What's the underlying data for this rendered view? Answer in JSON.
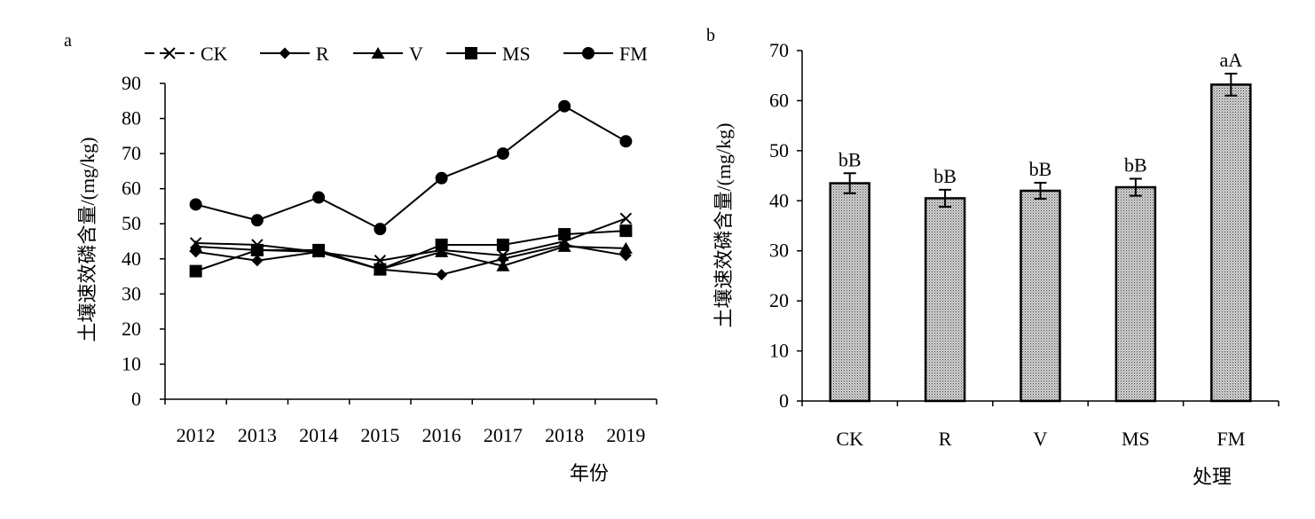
{
  "chart_data": [
    {
      "panel": "a",
      "type": "line",
      "xlabel": "年份",
      "ylabel": "土壤速效磷含量/(mg/kg)",
      "categories": [
        "2012",
        "2013",
        "2014",
        "2015",
        "2016",
        "2017",
        "2018",
        "2019"
      ],
      "ylim": [
        0,
        90
      ],
      "yticks": [
        "0",
        "10",
        "20",
        "30",
        "40",
        "50",
        "60",
        "70",
        "80",
        "90"
      ],
      "grid": false,
      "legend_position": "top",
      "series": [
        {
          "name": "CK",
          "marker": "x",
          "values": [
            44.5,
            44.0,
            42.0,
            39.5,
            42.5,
            41.0,
            45.0,
            51.5
          ]
        },
        {
          "name": "R",
          "marker": "diamond",
          "values": [
            42.0,
            39.5,
            42.0,
            37.0,
            35.5,
            40.0,
            44.0,
            41.0
          ]
        },
        {
          "name": "V",
          "marker": "triangle",
          "values": [
            43.5,
            42.5,
            42.0,
            37.0,
            42.0,
            38.0,
            43.5,
            43.0
          ]
        },
        {
          "name": "MS",
          "marker": "square",
          "values": [
            36.5,
            42.5,
            42.5,
            37.0,
            44.0,
            44.0,
            47.0,
            48.0
          ]
        },
        {
          "name": "FM",
          "marker": "circle",
          "values": [
            55.5,
            51.0,
            57.5,
            48.5,
            63.0,
            70.0,
            83.5,
            73.5
          ]
        }
      ]
    },
    {
      "panel": "b",
      "type": "bar",
      "xlabel": "处理",
      "ylabel": "土壤速效磷含量/(mg/kg)",
      "categories": [
        "CK",
        "R",
        "V",
        "MS",
        "FM"
      ],
      "values": [
        43.5,
        40.5,
        42.0,
        42.7,
        63.2
      ],
      "errors": [
        2.0,
        1.7,
        1.6,
        1.7,
        2.2
      ],
      "labels": [
        "bB",
        "bB",
        "bB",
        "bB",
        "aA"
      ],
      "ylim": [
        0,
        70
      ],
      "yticks": [
        "0",
        "10",
        "20",
        "30",
        "40",
        "50",
        "60",
        "70"
      ],
      "grid": false
    }
  ]
}
